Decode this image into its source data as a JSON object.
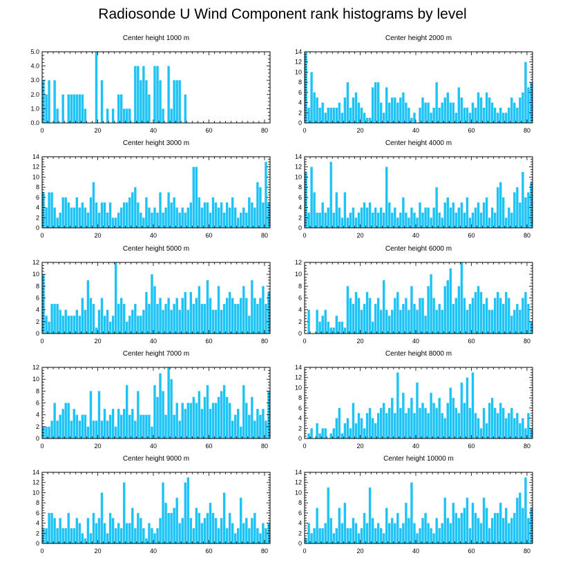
{
  "title": "Radiosonde U Wind Component rank histograms by level",
  "bar_color": "#1ec3f5",
  "chart_data": [
    {
      "type": "bar",
      "title": "Center height 1000 m",
      "xlim": [
        0,
        82
      ],
      "ylim": [
        0,
        5
      ],
      "xticks": [
        0,
        20,
        40,
        60,
        80
      ],
      "xtick_labels": [
        "0",
        "20",
        "40",
        "60",
        "80"
      ],
      "yticks": [
        0,
        1,
        2,
        3,
        4,
        5
      ],
      "ytick_labels": [
        "0.0",
        "1.0",
        "2.0",
        "3.0",
        "4.0",
        "5.0"
      ],
      "values": [
        3,
        2,
        3,
        0,
        3,
        1,
        0,
        2,
        0,
        2,
        2,
        2,
        2,
        2,
        2,
        1,
        0,
        0,
        0,
        5,
        0,
        3,
        0,
        1,
        0,
        1,
        0,
        2,
        2,
        1,
        1,
        1,
        0,
        4,
        4,
        3,
        4,
        3,
        2,
        0,
        4,
        4,
        3,
        1,
        0,
        4,
        1,
        3,
        3,
        3,
        0,
        2,
        0,
        0,
        0,
        0,
        0,
        0,
        0,
        0,
        0,
        0,
        0,
        0,
        0,
        0,
        0,
        0,
        0,
        0,
        0,
        0,
        0,
        0,
        0,
        0,
        0,
        0,
        0,
        0,
        0,
        0
      ]
    },
    {
      "type": "bar",
      "title": "Center height 2000 m",
      "xlim": [
        0,
        82
      ],
      "ylim": [
        0,
        14
      ],
      "xticks": [
        0,
        20,
        40,
        60,
        80
      ],
      "xtick_labels": [
        "0",
        "20",
        "40",
        "60",
        "80"
      ],
      "yticks": [
        0,
        2,
        4,
        6,
        8,
        10,
        12,
        14
      ],
      "ytick_labels": [
        "0",
        "2",
        "4",
        "6",
        "8",
        "10",
        "12",
        "14"
      ],
      "values": [
        14,
        3,
        10,
        6,
        5,
        3,
        4,
        2,
        3,
        3,
        3,
        3,
        4,
        2,
        5,
        8,
        3,
        5,
        6,
        4,
        3,
        2,
        1,
        1,
        7,
        8,
        8,
        4,
        2,
        7,
        4,
        5,
        5,
        4,
        5,
        6,
        4,
        3,
        1,
        2,
        0,
        3,
        5,
        4,
        4,
        2,
        3,
        8,
        3,
        4,
        5,
        6,
        4,
        4,
        2,
        7,
        5,
        3,
        3,
        2,
        4,
        3,
        6,
        5,
        3,
        6,
        5,
        4,
        3,
        2,
        3,
        2,
        2,
        3,
        5,
        4,
        3,
        5,
        6,
        12,
        7,
        8
      ]
    },
    {
      "type": "bar",
      "title": "Center height 3000 m",
      "xlim": [
        0,
        82
      ],
      "ylim": [
        0,
        14
      ],
      "xticks": [
        0,
        20,
        40,
        60,
        80
      ],
      "xtick_labels": [
        "0",
        "20",
        "40",
        "60",
        "80"
      ],
      "yticks": [
        0,
        2,
        4,
        6,
        8,
        10,
        12,
        14
      ],
      "ytick_labels": [
        "0",
        "2",
        "4",
        "6",
        "8",
        "10",
        "12",
        "14"
      ],
      "values": [
        7,
        4,
        7,
        7,
        4,
        2,
        3,
        6,
        6,
        5,
        4,
        4,
        6,
        4,
        5,
        4,
        3,
        6,
        9,
        5,
        3,
        5,
        5,
        3,
        5,
        2,
        2,
        3,
        4,
        5,
        5,
        6,
        7,
        8,
        5,
        3,
        2,
        6,
        4,
        3,
        4,
        3,
        7,
        3,
        4,
        7,
        5,
        6,
        4,
        3,
        4,
        3,
        4,
        5,
        12,
        12,
        6,
        4,
        5,
        5,
        3,
        6,
        5,
        4,
        5,
        3,
        5,
        4,
        6,
        4,
        2,
        3,
        4,
        3,
        6,
        5,
        4,
        9,
        8,
        5,
        13,
        5
      ]
    },
    {
      "type": "bar",
      "title": "Center height 4000 m",
      "xlim": [
        0,
        82
      ],
      "ylim": [
        0,
        14
      ],
      "xticks": [
        0,
        20,
        40,
        60,
        80
      ],
      "xtick_labels": [
        "0",
        "20",
        "40",
        "60",
        "80"
      ],
      "yticks": [
        0,
        2,
        4,
        6,
        8,
        10,
        12,
        14
      ],
      "ytick_labels": [
        "0",
        "2",
        "4",
        "6",
        "8",
        "10",
        "12",
        "14"
      ],
      "values": [
        11,
        3,
        12,
        7,
        3,
        3,
        5,
        3,
        4,
        13,
        3,
        7,
        4,
        2,
        7,
        2,
        3,
        4,
        2,
        3,
        4,
        5,
        4,
        5,
        3,
        4,
        3,
        4,
        3,
        12,
        5,
        3,
        4,
        2,
        3,
        6,
        3,
        2,
        4,
        3,
        2,
        5,
        3,
        4,
        4,
        2,
        4,
        8,
        3,
        2,
        5,
        6,
        4,
        5,
        3,
        4,
        5,
        3,
        6,
        2,
        3,
        4,
        5,
        3,
        5,
        6,
        2,
        4,
        3,
        8,
        9,
        6,
        2,
        4,
        3,
        7,
        8,
        5,
        11,
        6,
        7,
        9
      ]
    },
    {
      "type": "bar",
      "title": "Center height 5000 m",
      "xlim": [
        0,
        82
      ],
      "ylim": [
        0,
        12
      ],
      "xticks": [
        0,
        20,
        40,
        60,
        80
      ],
      "xtick_labels": [
        "0",
        "20",
        "40",
        "60",
        "80"
      ],
      "yticks": [
        0,
        2,
        4,
        6,
        8,
        10,
        12
      ],
      "ytick_labels": [
        "0",
        "2",
        "4",
        "6",
        "8",
        "10",
        "12"
      ],
      "values": [
        10,
        3,
        2,
        5,
        5,
        5,
        4,
        3,
        4,
        3,
        3,
        3,
        4,
        3,
        6,
        4,
        9,
        6,
        5,
        1,
        4,
        6,
        3,
        4,
        2,
        3,
        12,
        5,
        6,
        5,
        2,
        3,
        4,
        5,
        3,
        3,
        4,
        7,
        5,
        10,
        8,
        5,
        6,
        4,
        5,
        6,
        4,
        5,
        6,
        4,
        6,
        7,
        4,
        7,
        5,
        6,
        8,
        5,
        5,
        9,
        6,
        4,
        4,
        8,
        4,
        5,
        6,
        7,
        6,
        5,
        5,
        6,
        8,
        6,
        3,
        9,
        6,
        5,
        6,
        8,
        5,
        7
      ]
    },
    {
      "type": "bar",
      "title": "Center height 6000 m",
      "xlim": [
        0,
        82
      ],
      "ylim": [
        0,
        12
      ],
      "xticks": [
        0,
        20,
        40,
        60,
        80
      ],
      "xtick_labels": [
        "0",
        "20",
        "40",
        "60",
        "80"
      ],
      "yticks": [
        0,
        2,
        4,
        6,
        8,
        10,
        12
      ],
      "ytick_labels": [
        "0",
        "2",
        "4",
        "6",
        "8",
        "10",
        "12"
      ],
      "values": [
        0,
        4,
        0,
        0,
        4,
        2,
        3,
        4,
        2,
        1,
        1,
        3,
        2,
        2,
        1,
        8,
        6,
        5,
        7,
        6,
        4,
        5,
        7,
        6,
        2,
        5,
        6,
        4,
        9,
        4,
        3,
        4,
        6,
        7,
        4,
        5,
        6,
        4,
        8,
        5,
        4,
        6,
        6,
        3,
        8,
        10,
        6,
        4,
        5,
        4,
        8,
        9,
        11,
        5,
        6,
        8,
        12,
        6,
        4,
        5,
        6,
        7,
        8,
        7,
        5,
        6,
        4,
        4,
        6,
        7,
        6,
        5,
        7,
        6,
        3,
        4,
        5,
        4,
        6,
        7,
        5,
        2
      ]
    },
    {
      "type": "bar",
      "title": "Center height 7000 m",
      "xlim": [
        0,
        82
      ],
      "ylim": [
        0,
        12
      ],
      "xticks": [
        0,
        20,
        40,
        60,
        80
      ],
      "xtick_labels": [
        "0",
        "20",
        "40",
        "60",
        "80"
      ],
      "yticks": [
        0,
        2,
        4,
        6,
        8,
        10,
        12
      ],
      "ytick_labels": [
        "0",
        "2",
        "4",
        "6",
        "8",
        "10",
        "12"
      ],
      "values": [
        2,
        2,
        2,
        3,
        6,
        3,
        4,
        5,
        6,
        6,
        3,
        5,
        4,
        3,
        4,
        4,
        2,
        8,
        3,
        3,
        8,
        3,
        5,
        3,
        4,
        5,
        2,
        5,
        4,
        5,
        9,
        4,
        5,
        3,
        8,
        4,
        4,
        4,
        4,
        2,
        9,
        7,
        11,
        8,
        4,
        12,
        10,
        4,
        6,
        3,
        6,
        5,
        6,
        6,
        7,
        6,
        8,
        5,
        7,
        9,
        5,
        6,
        6,
        7,
        8,
        9,
        7,
        6,
        3,
        4,
        5,
        2,
        9,
        6,
        4,
        7,
        3,
        5,
        4,
        5,
        3,
        8
      ]
    },
    {
      "type": "bar",
      "title": "Center height 8000 m",
      "xlim": [
        0,
        82
      ],
      "ylim": [
        0,
        14
      ],
      "xticks": [
        0,
        20,
        40,
        60,
        80
      ],
      "xtick_labels": [
        "0",
        "20",
        "40",
        "60",
        "80"
      ],
      "yticks": [
        0,
        2,
        4,
        6,
        8,
        10,
        12,
        14
      ],
      "ytick_labels": [
        "0",
        "2",
        "4",
        "6",
        "8",
        "10",
        "12",
        "14"
      ],
      "values": [
        0,
        1,
        2,
        0,
        3,
        1,
        2,
        2,
        0,
        1,
        2,
        4,
        6,
        1,
        3,
        4,
        2,
        7,
        3,
        5,
        4,
        2,
        5,
        6,
        4,
        3,
        5,
        6,
        7,
        5,
        6,
        8,
        5,
        13,
        6,
        9,
        5,
        6,
        8,
        5,
        11,
        6,
        7,
        6,
        5,
        9,
        7,
        6,
        8,
        5,
        4,
        7,
        10,
        8,
        6,
        5,
        11,
        7,
        12,
        6,
        13,
        5,
        4,
        2,
        6,
        3,
        7,
        8,
        6,
        5,
        7,
        6,
        4,
        5,
        6,
        4,
        5,
        3,
        4,
        2,
        5,
        2
      ]
    },
    {
      "type": "bar",
      "title": "Center height 9000 m",
      "xlim": [
        0,
        82
      ],
      "ylim": [
        0,
        14
      ],
      "xticks": [
        0,
        20,
        40,
        60,
        80
      ],
      "xtick_labels": [
        "0",
        "20",
        "40",
        "60",
        "80"
      ],
      "yticks": [
        0,
        2,
        4,
        6,
        8,
        10,
        12,
        14
      ],
      "ytick_labels": [
        "0",
        "2",
        "4",
        "6",
        "8",
        "10",
        "12",
        "14"
      ],
      "values": [
        3,
        3,
        6,
        6,
        5,
        3,
        5,
        3,
        3,
        6,
        3,
        3,
        5,
        4,
        2,
        1,
        5,
        2,
        6,
        4,
        5,
        10,
        4,
        2,
        6,
        5,
        3,
        4,
        3,
        12,
        4,
        4,
        7,
        3,
        6,
        5,
        3,
        1,
        4,
        3,
        2,
        3,
        5,
        12,
        8,
        6,
        6,
        7,
        9,
        4,
        5,
        12,
        13,
        5,
        3,
        7,
        6,
        4,
        5,
        6,
        8,
        6,
        5,
        3,
        5,
        10,
        3,
        6,
        4,
        2,
        3,
        9,
        4,
        5,
        3,
        5,
        6,
        3,
        2,
        4,
        3,
        4
      ]
    },
    {
      "type": "bar",
      "title": "Center height 10000 m",
      "xlim": [
        0,
        82
      ],
      "ylim": [
        0,
        14
      ],
      "xticks": [
        0,
        20,
        40,
        60,
        80
      ],
      "xtick_labels": [
        "0",
        "20",
        "40",
        "60",
        "80"
      ],
      "yticks": [
        0,
        2,
        4,
        6,
        8,
        10,
        12,
        14
      ],
      "ytick_labels": [
        "0",
        "2",
        "4",
        "6",
        "8",
        "10",
        "12",
        "14"
      ],
      "values": [
        1,
        4,
        2,
        3,
        7,
        3,
        3,
        4,
        11,
        5,
        2,
        3,
        7,
        4,
        8,
        3,
        3,
        5,
        4,
        2,
        3,
        6,
        4,
        11,
        5,
        3,
        4,
        3,
        2,
        7,
        4,
        5,
        4,
        6,
        3,
        4,
        8,
        5,
        12,
        4,
        2,
        3,
        5,
        6,
        4,
        3,
        2,
        5,
        3,
        4,
        9,
        5,
        4,
        8,
        6,
        5,
        6,
        7,
        9,
        3,
        8,
        6,
        5,
        4,
        9,
        7,
        3,
        5,
        6,
        6,
        8,
        5,
        7,
        4,
        5,
        6,
        9,
        10,
        7,
        13,
        5,
        7
      ]
    }
  ]
}
